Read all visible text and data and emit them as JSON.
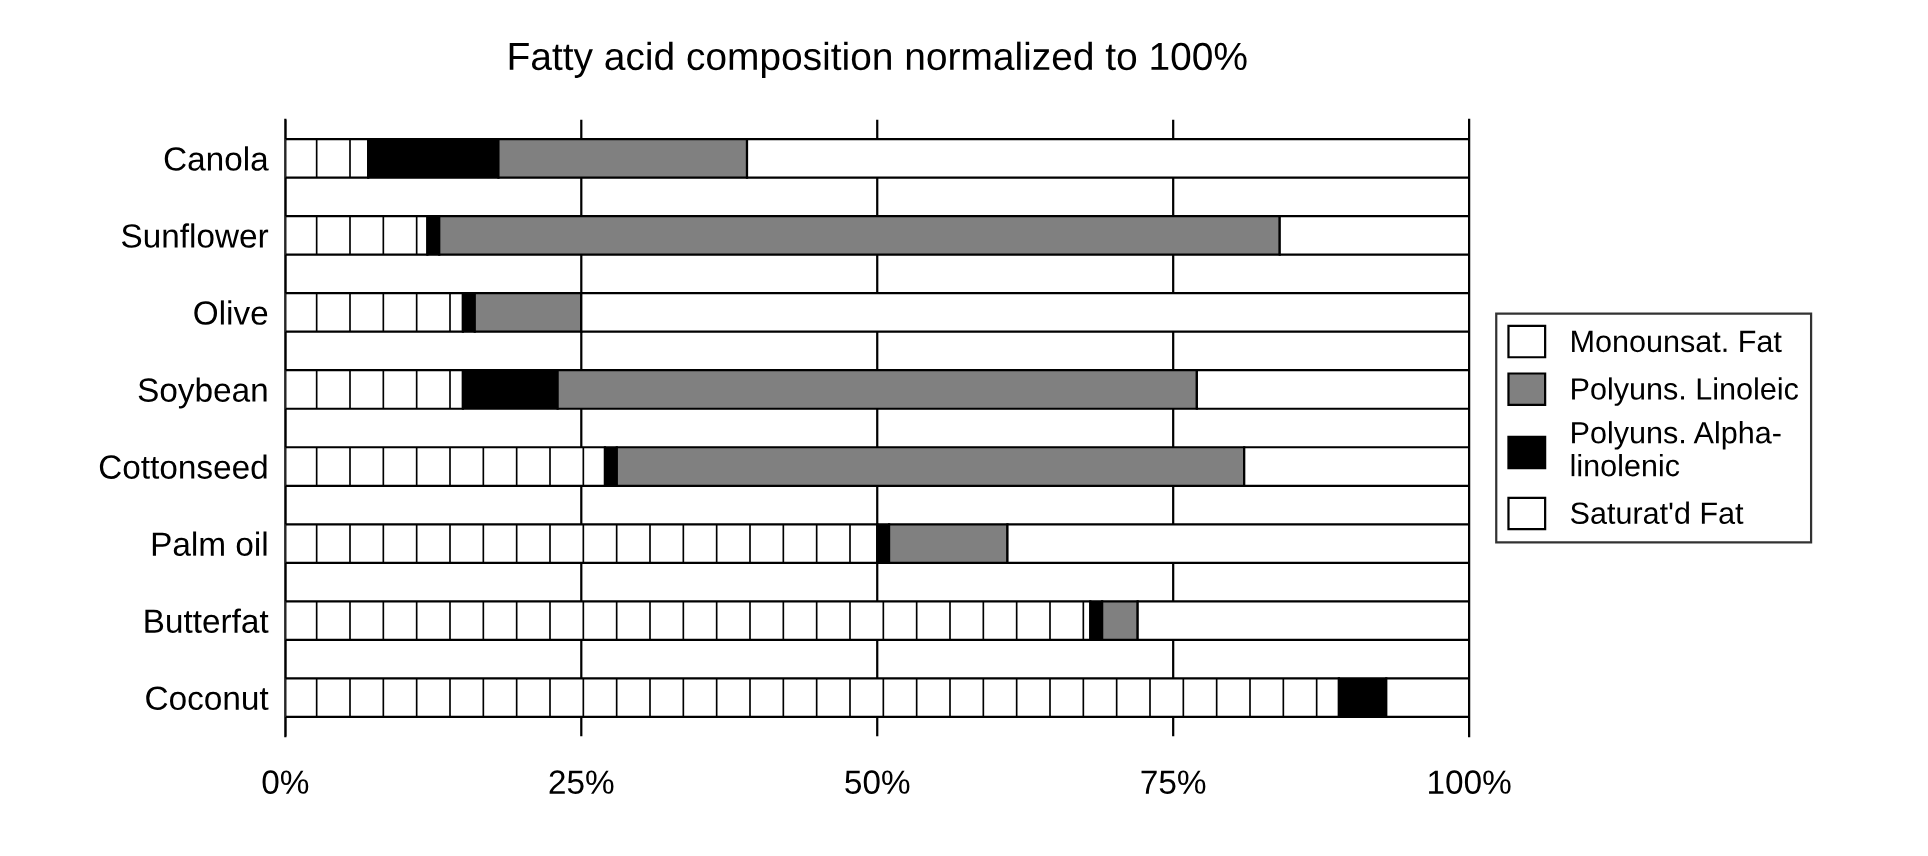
{
  "chart_data": {
    "type": "bar",
    "orientation": "horizontal",
    "stacked": true,
    "title": "Fatty acid composition normalized to 100%",
    "categories": [
      "Canola",
      "Sunflower",
      "Olive",
      "Soybean",
      "Cottonseed",
      "Palm oil",
      "Butterfat",
      "Coconut"
    ],
    "series": [
      {
        "name": "Saturat'd Fat",
        "color": "#ffffff",
        "values": [
          7,
          12,
          15,
          15,
          27,
          50,
          68,
          89
        ]
      },
      {
        "name": "Polyuns. Alpha-\nlinolenic",
        "color": "#000000",
        "values": [
          11,
          1,
          1,
          8,
          1,
          1,
          1,
          4
        ]
      },
      {
        "name": "Polyuns. Linoleic",
        "color": "#808080",
        "values": [
          21,
          71,
          9,
          54,
          53,
          10,
          3,
          0
        ]
      },
      {
        "name": "Monounsat. Fat",
        "color": "#ffffff",
        "values": [
          61,
          16,
          75,
          23,
          19,
          39,
          28,
          7
        ]
      }
    ],
    "xlim": [
      0,
      100
    ],
    "xticks": [
      {
        "value": 0,
        "label": "0%"
      },
      {
        "value": 25,
        "label": "25%"
      },
      {
        "value": 50,
        "label": "50%"
      },
      {
        "value": 75,
        "label": "75%"
      },
      {
        "value": 100,
        "label": "100%"
      }
    ],
    "grid": "x",
    "legend": "right"
  }
}
